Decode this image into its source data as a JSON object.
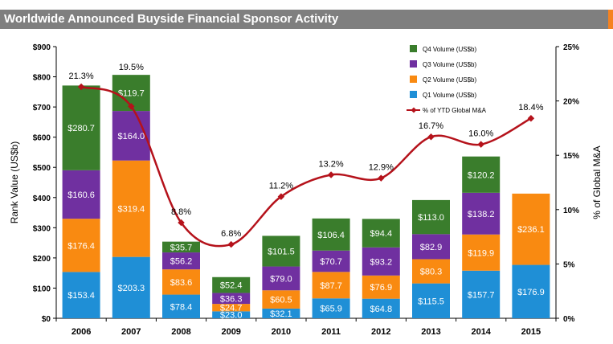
{
  "page_title": "Worldwide Announced Buyside Financial Sponsor Activity",
  "colors": {
    "q1": "#1f8fd6",
    "q2": "#f98a11",
    "q3": "#7030a0",
    "q4": "#3a7d2c",
    "line": "#b5121b",
    "title_bar": "#7f7f7f",
    "accent": "#f58220"
  },
  "chart_data": {
    "type": "bar",
    "stacked": true,
    "categories": [
      "2006",
      "2007",
      "2008",
      "2009",
      "2010",
      "2011",
      "2012",
      "2013",
      "2014",
      "2015"
    ],
    "series": [
      {
        "name": "Q1 Volume (US$b)",
        "values": [
          153.4,
          203.3,
          78.4,
          23.0,
          32.1,
          65.9,
          64.8,
          115.5,
          157.7,
          176.9
        ],
        "labels": [
          "$153.4",
          "$203.3",
          "$78.4",
          "$23.0",
          "$32.1",
          "$65.9",
          "$64.8",
          "$115.5",
          "$157.7",
          "$176.9"
        ]
      },
      {
        "name": "Q2 Volume (US$b)",
        "values": [
          176.4,
          319.4,
          83.6,
          24.7,
          60.5,
          87.7,
          76.9,
          80.3,
          119.9,
          236.1
        ],
        "labels": [
          "$176.4",
          "$319.4",
          "$83.6",
          "$24.7",
          "$60.5",
          "$87.7",
          "$76.9",
          "$80.3",
          "$119.9",
          "$236.1"
        ]
      },
      {
        "name": "Q3 Volume (US$b)",
        "values": [
          160.6,
          164.0,
          56.2,
          36.3,
          79.0,
          70.7,
          93.2,
          82.9,
          138.2,
          null
        ],
        "labels": [
          "$160.6",
          "$164.0",
          "$56.2",
          "$36.3",
          "$79.0",
          "$70.7",
          "$93.2",
          "$82.9",
          "$138.2",
          ""
        ]
      },
      {
        "name": "Q4 Volume (US$b)",
        "values": [
          280.7,
          119.7,
          35.7,
          52.4,
          101.5,
          106.4,
          94.4,
          113.0,
          120.2,
          null
        ],
        "labels": [
          "$280.7",
          "$119.7",
          "$35.7",
          "$52.4",
          "$101.5",
          "$106.4",
          "$94.4",
          "$113.0",
          "$120.2",
          ""
        ]
      }
    ],
    "line": {
      "name": "% of YTD Global M&A",
      "values": [
        21.3,
        19.5,
        8.8,
        6.8,
        11.2,
        13.2,
        12.9,
        16.7,
        16.0,
        18.4
      ],
      "labels": [
        "21.3%",
        "19.5%",
        "8.8%",
        "6.8%",
        "11.2%",
        "13.2%",
        "12.9%",
        "16.7%",
        "16.0%",
        "18.4%"
      ]
    },
    "ylabel": "Rank Value (US$b)",
    "y2label": "% of Global M&A",
    "ylim": [
      0,
      900
    ],
    "y2lim": [
      0,
      25
    ],
    "yticks": [
      "$0",
      "$100",
      "$200",
      "$300",
      "$400",
      "$500",
      "$600",
      "$700",
      "$800",
      "$900"
    ],
    "y2ticks": [
      "0%",
      "5%",
      "10%",
      "15%",
      "20%",
      "25%"
    ],
    "legend_position": "top-right",
    "grid": false
  }
}
